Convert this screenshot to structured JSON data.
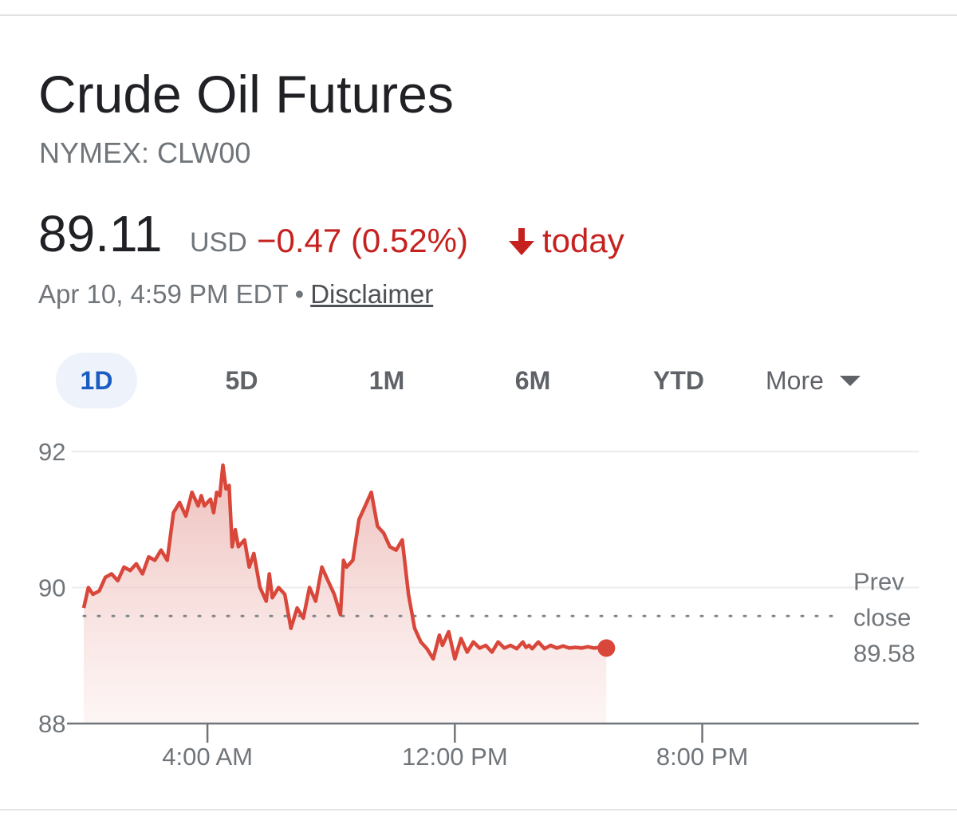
{
  "header": {
    "title": "Crude Oil Futures",
    "ticker": "NYMEX: CLW00"
  },
  "quote": {
    "price": "89.11",
    "currency": "USD",
    "change": "−0.47 (0.52%)",
    "direction_icon": "arrow-down-icon",
    "period": "today",
    "timestamp": "Apr 10, 4:59 PM EDT",
    "separator": "•",
    "disclaimer": "Disclaimer"
  },
  "range_tabs": {
    "items": [
      "1D",
      "5D",
      "1M",
      "6M",
      "YTD"
    ],
    "selected": "1D",
    "more_label": "More"
  },
  "colors": {
    "accent_blue": "#1a5cc2",
    "negative_red": "#d9463a",
    "text_secondary": "#70757a"
  },
  "chart_data": {
    "type": "line",
    "y_ticks": [
      "92",
      "90",
      "88"
    ],
    "ylim": [
      88,
      92
    ],
    "x_ticks": [
      "4:00 AM",
      "12:00 PM",
      "8:00 PM"
    ],
    "x_tick_hours": [
      4,
      12,
      20
    ],
    "x_range_hours": [
      0,
      27
    ],
    "grid": true,
    "prev_close": {
      "label_line1": "Prev",
      "label_line2": "close",
      "value_text": "89.58",
      "value": 89.58
    },
    "last_value": 89.11,
    "series": [
      {
        "x": [
          0,
          0.15,
          0.3,
          0.5,
          0.7,
          0.9,
          1.1,
          1.3,
          1.5,
          1.7,
          1.9,
          2.1,
          2.3,
          2.5,
          2.7,
          2.9,
          3.1,
          3.3,
          3.5,
          3.7,
          3.8,
          3.9,
          4.0,
          4.1,
          4.2,
          4.3,
          4.4,
          4.5,
          4.6,
          4.7,
          4.8,
          4.9,
          5.0,
          5.2,
          5.35,
          5.5,
          5.7,
          5.9,
          6.0,
          6.1,
          6.3,
          6.5,
          6.7,
          6.9,
          7.1,
          7.3,
          7.5,
          7.7,
          7.9,
          8.1,
          8.3,
          8.4,
          8.5,
          8.7,
          8.9,
          9.1,
          9.3,
          9.5,
          9.7,
          9.9,
          10.1,
          10.3,
          10.5,
          10.7,
          10.9,
          11.1,
          11.3,
          11.5,
          11.6,
          11.8,
          12.0,
          12.2,
          12.4,
          12.6,
          12.8,
          13.0,
          13.2,
          13.4,
          13.6,
          13.8,
          14.0,
          14.2,
          14.3,
          14.4,
          14.5,
          14.7,
          14.9,
          15.1,
          15.3,
          15.5,
          15.7,
          15.9,
          16.1,
          16.3,
          16.5,
          16.7,
          16.9
        ],
        "y": [
          89.7,
          90.0,
          89.9,
          89.95,
          90.15,
          90.2,
          90.1,
          90.3,
          90.25,
          90.35,
          90.2,
          90.45,
          90.4,
          90.55,
          90.4,
          91.1,
          91.25,
          91.05,
          91.4,
          91.2,
          91.35,
          91.2,
          91.25,
          91.3,
          91.1,
          91.4,
          91.35,
          91.8,
          91.45,
          91.5,
          90.6,
          90.85,
          90.6,
          90.7,
          90.3,
          90.5,
          90.0,
          89.8,
          90.2,
          89.85,
          90.0,
          89.9,
          89.4,
          89.7,
          89.55,
          90.0,
          89.8,
          90.3,
          90.1,
          89.9,
          89.6,
          90.4,
          90.3,
          90.4,
          91.0,
          91.2,
          91.4,
          90.9,
          90.8,
          90.6,
          90.55,
          90.7,
          89.9,
          89.4,
          89.2,
          89.1,
          88.95,
          89.3,
          89.15,
          89.35,
          88.95,
          89.25,
          89.05,
          89.2,
          89.11,
          89.15,
          89.05,
          89.2,
          89.11,
          89.15,
          89.1,
          89.2,
          89.12,
          89.15,
          89.1,
          89.2,
          89.1,
          89.15,
          89.11,
          89.14,
          89.11,
          89.12,
          89.11,
          89.13,
          89.11,
          89.12,
          89.11
        ]
      }
    ]
  }
}
